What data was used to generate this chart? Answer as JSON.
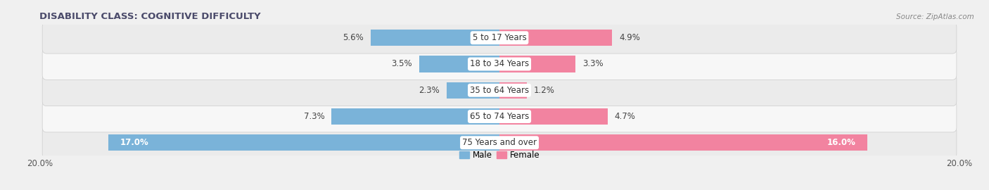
{
  "title": "DISABILITY CLASS: COGNITIVE DIFFICULTY",
  "title_color": "#4a4a6a",
  "source": "Source: ZipAtlas.com",
  "categories": [
    "5 to 17 Years",
    "18 to 34 Years",
    "35 to 64 Years",
    "65 to 74 Years",
    "75 Years and over"
  ],
  "male_values": [
    5.6,
    3.5,
    2.3,
    7.3,
    17.0
  ],
  "female_values": [
    4.9,
    3.3,
    1.2,
    4.7,
    16.0
  ],
  "x_max": 20.0,
  "male_color": "#7ab3d9",
  "female_color": "#f283a0",
  "row_bg_even": "#ebebeb",
  "row_bg_odd": "#f7f7f7",
  "fig_bg": "#f0f0f0",
  "title_fontsize": 9.5,
  "label_fontsize": 8.5,
  "tick_fontsize": 8.5,
  "source_fontsize": 7.5,
  "figsize": [
    14.06,
    2.7
  ],
  "dpi": 100
}
